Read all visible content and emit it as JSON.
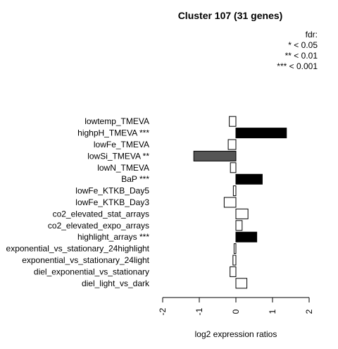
{
  "chart_data": {
    "type": "bar",
    "orientation": "horizontal",
    "title": "Cluster 107 (31 genes)",
    "xlabel": "log2 expression ratios",
    "xlim": [
      -2,
      2
    ],
    "xticks": [
      "-2",
      "-1",
      "0",
      "1",
      "2"
    ],
    "legend": [
      "fdr:",
      "* < 0.05",
      "** < 0.01",
      "*** < 0.001"
    ],
    "categories": [
      "lowtemp_TMEVA",
      "highpH_TMEVA ***",
      "lowFe_TMEVA",
      "lowSi_TMEVA **",
      "lowN_TMEVA",
      "BaP ***",
      "lowFe_KTKB_Day5",
      "lowFe_KTKB_Day3",
      "co2_elevated_stat_arrays",
      "co2_elevated_expo_arrays",
      "highlight_arrays ***",
      "exponential_vs_stationary_24highlight",
      "exponential_vs_stationary_24light",
      "diel_exponential_vs_stationary",
      "diel_light_vs_dark"
    ],
    "values": [
      -0.18,
      1.38,
      -0.21,
      -1.15,
      -0.15,
      0.72,
      -0.07,
      -0.32,
      0.33,
      0.17,
      0.57,
      -0.05,
      -0.08,
      -0.16,
      0.3
    ],
    "significance": [
      "",
      "***",
      "",
      "**",
      "",
      "***",
      "",
      "",
      "",
      "",
      "***",
      "",
      "",
      "",
      ""
    ],
    "bar_colors": {
      "***": "#000000",
      "**": "#555555",
      "": "#ffffff"
    },
    "bar_outline": "#000000",
    "grid": false
  }
}
